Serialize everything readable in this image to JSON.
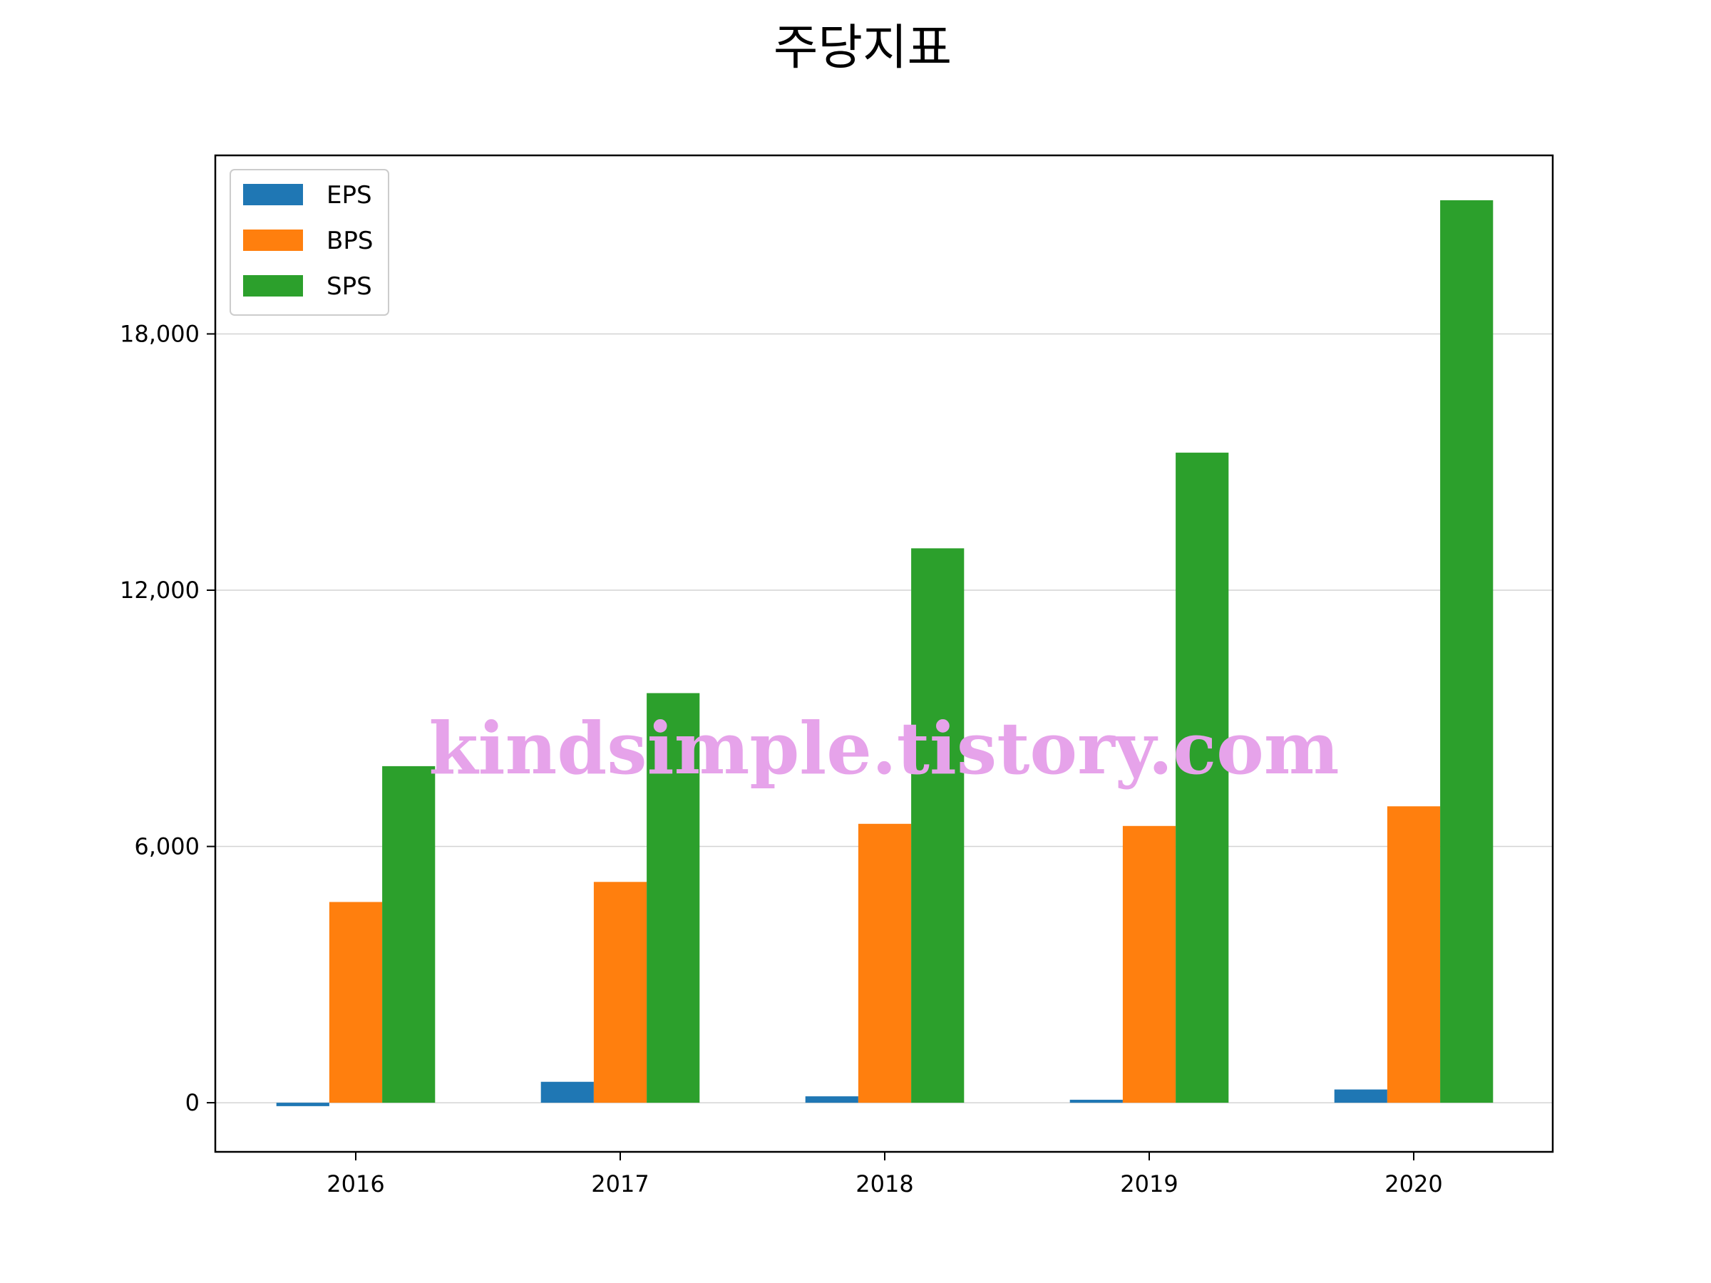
{
  "chart_data": {
    "type": "bar",
    "title": "주당지표",
    "xlabel": "",
    "ylabel": "",
    "categories": [
      "2016",
      "2017",
      "2018",
      "2019",
      "2020"
    ],
    "series": [
      {
        "name": "EPS",
        "values": [
          -80,
          490,
          150,
          70,
          310
        ],
        "color": "#1f77b4"
      },
      {
        "name": "BPS",
        "values": [
          4700,
          5170,
          6530,
          6480,
          6940
        ],
        "color": "#ff7f0e"
      },
      {
        "name": "SPS",
        "values": [
          7880,
          9590,
          12980,
          15220,
          21130
        ],
        "color": "#2ca02c"
      }
    ],
    "ylim": [
      -1150,
      22180
    ],
    "yticks": [
      0,
      6000,
      12000,
      18000
    ],
    "ytick_labels": [
      "0",
      "6,000",
      "12,000",
      "18,000"
    ],
    "grid": "y",
    "legend_position": "top-left",
    "watermark": "kindsimple.tistory.com"
  }
}
